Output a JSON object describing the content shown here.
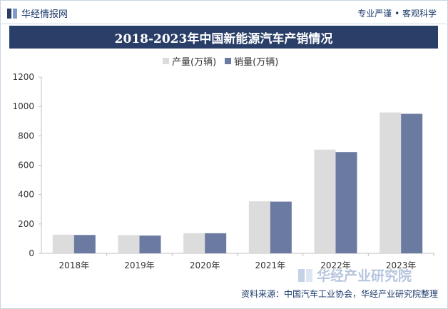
{
  "header": {
    "brand": "华经情报网",
    "tagline": "专业严谨 • 客观科学"
  },
  "title": "2018-2023年中国新能源汽车产销情况",
  "legend": [
    {
      "label": "产量(万辆)",
      "color": "#dcdcdc"
    },
    {
      "label": "销量(万辆)",
      "color": "#6a7aa0"
    }
  ],
  "footer": {
    "source": "资料来源：中国汽车工业协会，华经产业研究院整理",
    "watermark": "华经产业研究院"
  },
  "chart_data": {
    "type": "bar",
    "categories": [
      "2018年",
      "2019年",
      "2020年",
      "2021年",
      "2022年",
      "2023年"
    ],
    "series": [
      {
        "name": "产量(万辆)",
        "values": [
          127,
          124,
          137,
          354,
          706,
          959
        ],
        "color": "#dcdcdc"
      },
      {
        "name": "销量(万辆)",
        "values": [
          125,
          121,
          137,
          352,
          689,
          950
        ],
        "color": "#6a7aa0"
      }
    ],
    "ylim": [
      0,
      1200
    ],
    "yticks": [
      0,
      200,
      400,
      600,
      800,
      1000,
      1200
    ],
    "grid": false,
    "legend_position": "top"
  }
}
